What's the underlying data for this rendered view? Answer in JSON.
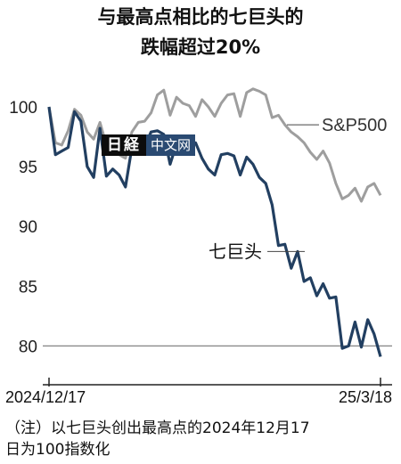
{
  "header": {
    "title_line1": "与最高点相比的七巨头的",
    "title_line2": "跌幅超过20%"
  },
  "watermark": {
    "mark": "日経",
    "site": "中文网"
  },
  "footnote": {
    "line1": "（注）以七巨头创出最高点的2024年12月17",
    "line2": "日为100指数化"
  },
  "colors": {
    "mag7": "#223f61",
    "sp500": "#9e9e9e",
    "reference_line": "#8a8a8a",
    "axis": "#222222"
  },
  "chart_data": {
    "type": "line",
    "title": "与最高点相比的七巨头的跌幅超过20%",
    "x_start_label": "2024/12/17",
    "x_end_label": "25/3/18",
    "ylim": [
      77.5,
      103.5
    ],
    "yticks": [
      80,
      85,
      90,
      95,
      100
    ],
    "reference_line": 80,
    "grid": false,
    "series": [
      {
        "name": "七巨头",
        "color": "#223f61",
        "values": [
          100.0,
          96.0,
          96.3,
          96.6,
          99.6,
          98.8,
          95.0,
          94.1,
          98.2,
          94.2,
          94.8,
          94.3,
          93.3,
          96.6,
          96.2,
          96.7,
          97.9,
          98.0,
          97.7,
          95.2,
          96.9,
          96.4,
          96.9,
          97.0,
          95.7,
          94.8,
          94.3,
          96.0,
          96.1,
          95.9,
          94.3,
          95.8,
          95.2,
          94.1,
          93.6,
          91.8,
          88.4,
          88.5,
          86.5,
          87.9,
          85.4,
          85.7,
          84.2,
          85.2,
          84.0,
          84.1,
          79.8,
          80.0,
          82.0,
          79.9,
          82.2,
          81.0,
          79.1
        ]
      },
      {
        "name": "S&P500",
        "color": "#9e9e9e",
        "values": [
          100.0,
          97.0,
          96.8,
          98.0,
          99.8,
          99.3,
          97.9,
          97.3,
          98.7,
          96.8,
          97.1,
          96.0,
          95.7,
          97.9,
          98.7,
          98.8,
          99.5,
          101.0,
          101.4,
          99.3,
          100.8,
          100.3,
          100.1,
          99.2,
          100.6,
          100.0,
          99.2,
          100.3,
          101.0,
          101.1,
          99.2,
          101.2,
          101.5,
          101.3,
          101.0,
          99.1,
          99.3,
          98.5,
          97.9,
          97.5,
          97.0,
          96.2,
          95.6,
          96.3,
          95.3,
          93.6,
          92.3,
          92.6,
          93.2,
          92.1,
          93.3,
          93.6,
          92.6
        ]
      }
    ]
  }
}
